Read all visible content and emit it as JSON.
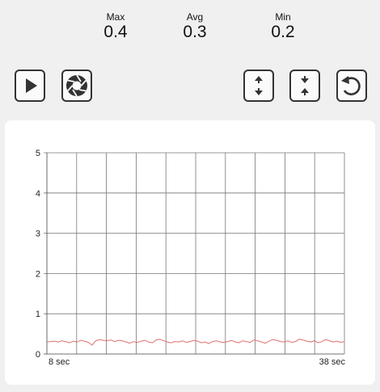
{
  "stats": {
    "max": {
      "label": "Max",
      "value": "0.4"
    },
    "avg": {
      "label": "Avg",
      "value": "0.3"
    },
    "min": {
      "label": "Min",
      "value": "0.2"
    }
  },
  "toolbar": {
    "left": [
      {
        "name": "play-button",
        "icon": "play-icon"
      },
      {
        "name": "camera-button",
        "icon": "shutter-icon"
      }
    ],
    "right": [
      {
        "name": "scale-up-down-button",
        "icon": "arrows-up-down-icon"
      },
      {
        "name": "scale-down-up-button",
        "icon": "arrows-down-up-icon"
      },
      {
        "name": "reset-button",
        "icon": "refresh-icon"
      }
    ]
  },
  "chart_data": {
    "type": "line",
    "x_start_label": "8 sec",
    "x_end_label": "38 sec",
    "ylim": [
      0,
      5
    ],
    "y_ticks": [
      "0",
      "1",
      "2",
      "3",
      "4",
      "5"
    ],
    "grid": true,
    "series_color": "#e07070",
    "series": [
      {
        "values": [
          0.3,
          0.31,
          0.32,
          0.3,
          0.33,
          0.31,
          0.28,
          0.32,
          0.3,
          0.34,
          0.32,
          0.29,
          0.22,
          0.33,
          0.36,
          0.34,
          0.33,
          0.35,
          0.31,
          0.34,
          0.33,
          0.3,
          0.27,
          0.31,
          0.29,
          0.32,
          0.34,
          0.3,
          0.28,
          0.35,
          0.37,
          0.33,
          0.3,
          0.28,
          0.31,
          0.3,
          0.33,
          0.29,
          0.31,
          0.34,
          0.32,
          0.28,
          0.3,
          0.26,
          0.31,
          0.33,
          0.3,
          0.29,
          0.31,
          0.34,
          0.3,
          0.28,
          0.33,
          0.31,
          0.29,
          0.35,
          0.33,
          0.3,
          0.27,
          0.32,
          0.36,
          0.34,
          0.31,
          0.3,
          0.33,
          0.29,
          0.31,
          0.37,
          0.35,
          0.32,
          0.3,
          0.33,
          0.28,
          0.31,
          0.36,
          0.33,
          0.3,
          0.32,
          0.29,
          0.31
        ]
      }
    ]
  }
}
